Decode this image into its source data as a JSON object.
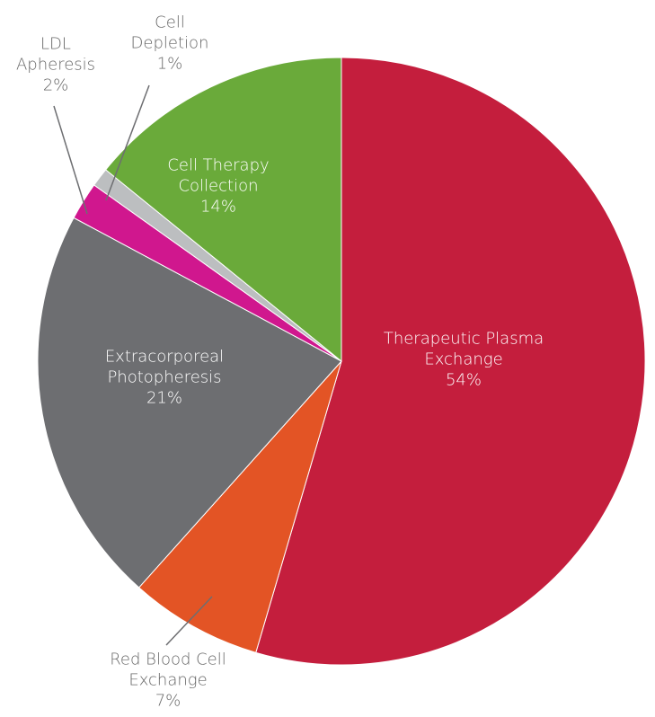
{
  "chart_data": {
    "type": "pie",
    "categories": [
      "Therapeutic Plasma Exchange",
      "Red Blood Cell Exchange",
      "Extracorporeal Photopheresis",
      "LDL Apheresis",
      "Cell Depletion",
      "Cell Therapy Collection"
    ],
    "values": [
      54,
      7,
      21,
      2,
      1,
      14
    ],
    "value_labels": [
      "54%",
      "7%",
      "21%",
      "2%",
      "1%",
      "14%"
    ],
    "colors": [
      "#c41e3d",
      "#e35425",
      "#6d6e71",
      "#d0178e",
      "#bcbec0",
      "#6aaa3a"
    ]
  }
}
